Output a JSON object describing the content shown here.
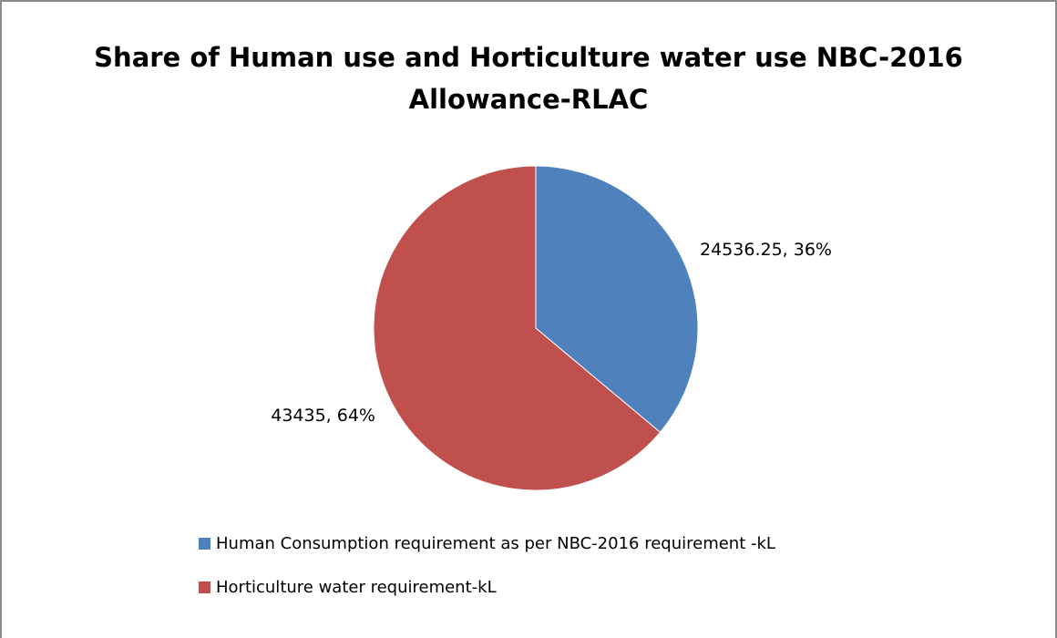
{
  "chart_data": {
    "type": "pie",
    "title": "Share of Human use and Horticulture water use NBC-2016 Allowance-RLAC",
    "slices": [
      {
        "name": "Human Consumption requirement as per NBC-2016 requirement -kL",
        "value": 24536.25,
        "percent": "36%",
        "label": "24536.25, 36%",
        "color": "#4f81bd"
      },
      {
        "name": "Horticulture water requirement-kL",
        "value": 43435,
        "percent": "64%",
        "label": "43435, 64%",
        "color": "#c0504d"
      }
    ],
    "start_angle_deg": 0,
    "direction": "clockwise",
    "legend_position": "bottom-left",
    "grid": false
  }
}
